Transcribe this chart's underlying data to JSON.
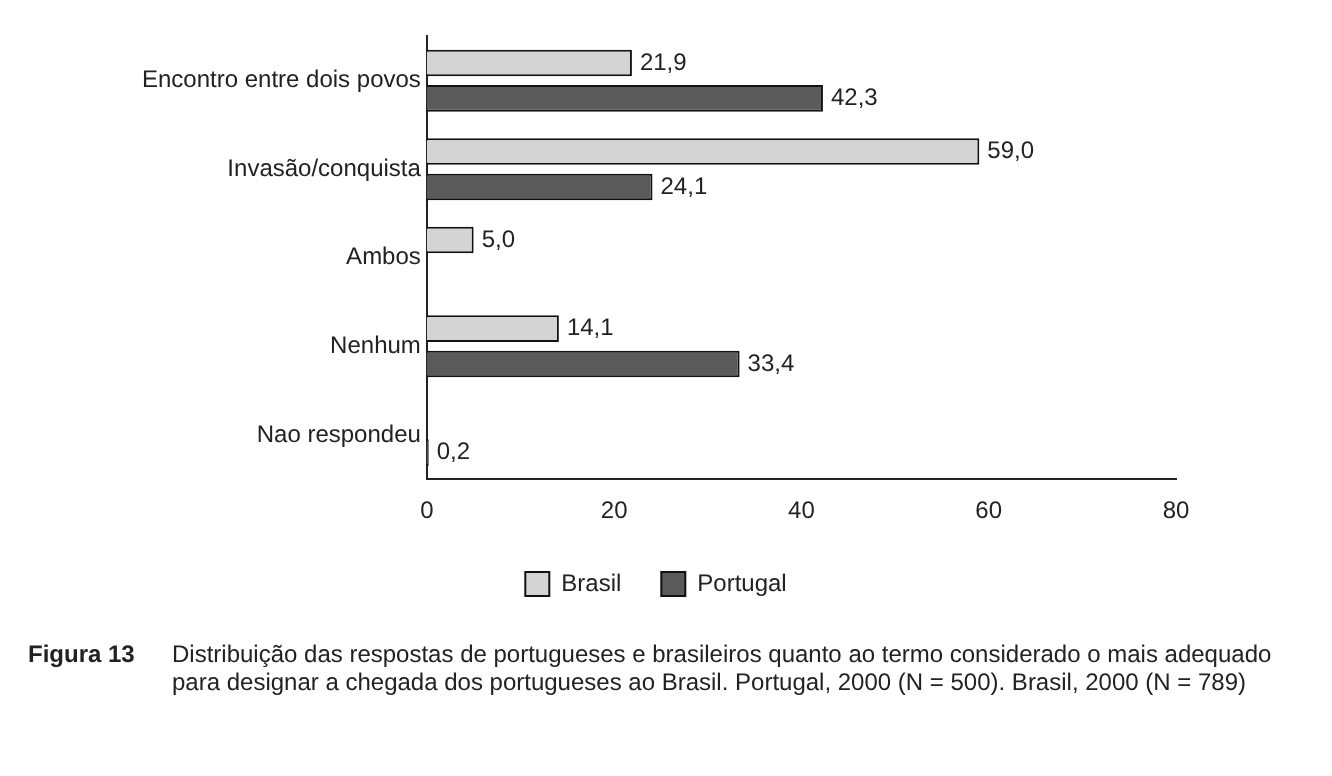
{
  "chart_data": {
    "type": "bar",
    "orientation": "horizontal",
    "categories": [
      "Encontro entre dois povos",
      "Invasão/conquista",
      "Ambos",
      "Nenhum",
      "Nao respondeu"
    ],
    "series": [
      {
        "name": "Brasil",
        "color": "#d4d4d4",
        "values": [
          21.9,
          59.0,
          5.0,
          14.1,
          null
        ],
        "value_labels": [
          "21,9",
          "59,0",
          "5,0",
          "14,1",
          null
        ]
      },
      {
        "name": "Portugal",
        "color": "#5a5a5a",
        "values": [
          42.3,
          24.1,
          null,
          33.4,
          0.2
        ],
        "value_labels": [
          "42,3",
          "24,1",
          null,
          "33,4",
          "0,2"
        ]
      }
    ],
    "xlim": [
      0,
      80
    ],
    "xticks": [
      0,
      20,
      40,
      60,
      80
    ],
    "grid": false,
    "legend": "bottom",
    "annotations": [
      "Figura 13",
      "Distribuição das respostas de portugueses e brasileiros quanto ao termo considerado o mais adequado para designar a chegada dos portugueses ao Brasil. Portugal, 2000 (N = 500). Brasil, 2000 (N = 789)"
    ]
  }
}
